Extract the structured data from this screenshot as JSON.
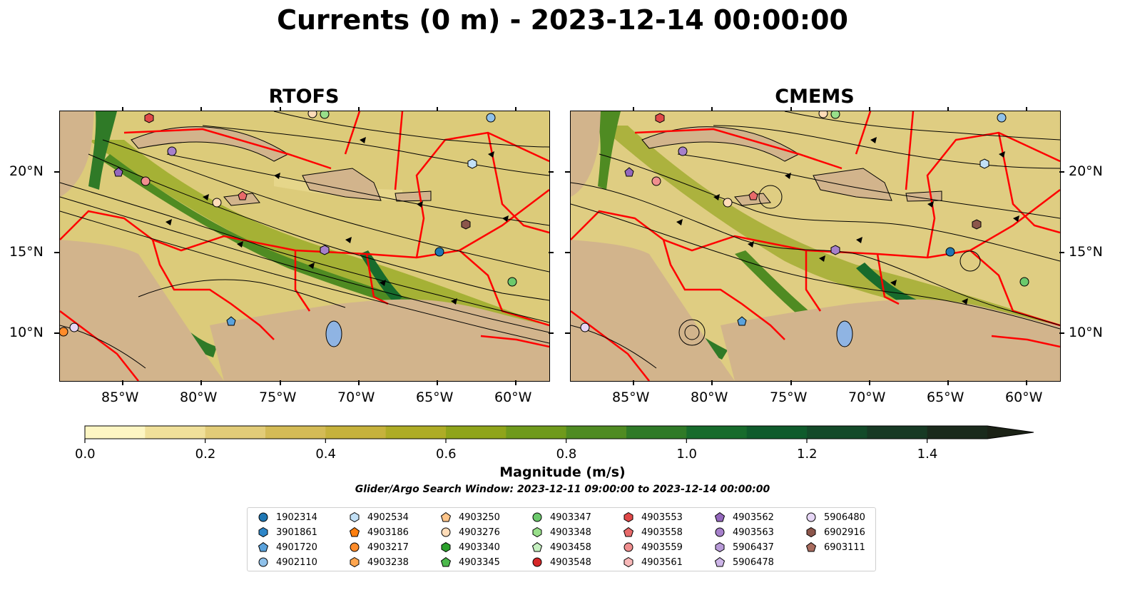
{
  "title": "Currents (0 m) - 2023-12-14 00:00:00",
  "panels": [
    {
      "title": "RTOFS"
    },
    {
      "title": "CMEMS"
    }
  ],
  "lon_ticks": [
    "85°W",
    "80°W",
    "75°W",
    "70°W",
    "65°W",
    "60°W"
  ],
  "lat_ticks": [
    "20°N",
    "15°N",
    "10°N"
  ],
  "colors": {
    "land": "#d2b48c",
    "lake": "#8fb4e3",
    "boundary": "#ff0000",
    "streamline": "#000000",
    "colormap": [
      "#fdf6c3",
      "#f0e09a",
      "#e2cc78",
      "#d4bb56",
      "#c6b23c",
      "#aeac26",
      "#8fa41a",
      "#6f9a1c",
      "#4f8b22",
      "#2f7a27",
      "#176b2c",
      "#0f5b2c",
      "#134a29",
      "#173a24",
      "#1a2a1c",
      "#1b2216"
    ]
  },
  "colorbar": {
    "label": "Magnitude (m/s)",
    "ticks": [
      "0.0",
      "0.2",
      "0.4",
      "0.6",
      "0.8",
      "1.0",
      "1.2",
      "1.4"
    ],
    "min": 0.0,
    "max": 1.5,
    "extend": "max"
  },
  "search_window": "Glider/Argo Search Window: 2023-12-11 09:00:00 to 2023-12-14 00:00:00",
  "legend": [
    {
      "id": "1902314",
      "marker": "circle",
      "color": "#1f77b4"
    },
    {
      "id": "3901861",
      "marker": "hexagon",
      "color": "#2e86c8"
    },
    {
      "id": "4901720",
      "marker": "pentagon",
      "color": "#5aa2dc"
    },
    {
      "id": "4902110",
      "marker": "circle",
      "color": "#8fc1ea"
    },
    {
      "id": "4902534",
      "marker": "hexagon",
      "color": "#c2e0f6"
    },
    {
      "id": "4903186",
      "marker": "pentagon",
      "color": "#ff7f0e"
    },
    {
      "id": "4903217",
      "marker": "circle",
      "color": "#ff8c2a"
    },
    {
      "id": "4903238",
      "marker": "hexagon",
      "color": "#ffa64f"
    },
    {
      "id": "4903250",
      "marker": "pentagon",
      "color": "#ffc58a"
    },
    {
      "id": "4903276",
      "marker": "circle",
      "color": "#ffdcb8"
    },
    {
      "id": "4903340",
      "marker": "hexagon",
      "color": "#2ca02c"
    },
    {
      "id": "4903345",
      "marker": "pentagon",
      "color": "#4cb84c"
    },
    {
      "id": "4903347",
      "marker": "circle",
      "color": "#6cc96c"
    },
    {
      "id": "4903348",
      "marker": "hexagon",
      "color": "#98df8a"
    },
    {
      "id": "4903458",
      "marker": "pentagon",
      "color": "#c5f0c0"
    },
    {
      "id": "4903548",
      "marker": "circle",
      "color": "#d62728"
    },
    {
      "id": "4903553",
      "marker": "hexagon",
      "color": "#e04848"
    },
    {
      "id": "4903558",
      "marker": "pentagon",
      "color": "#e86a6a"
    },
    {
      "id": "4903559",
      "marker": "circle",
      "color": "#f08f8f"
    },
    {
      "id": "4903561",
      "marker": "hexagon",
      "color": "#f8b8b8"
    },
    {
      "id": "4903562",
      "marker": "pentagon",
      "color": "#9467bd"
    },
    {
      "id": "4903563",
      "marker": "circle",
      "color": "#a680cb"
    },
    {
      "id": "5906437",
      "marker": "hexagon",
      "color": "#b89ad8"
    },
    {
      "id": "5906478",
      "marker": "pentagon",
      "color": "#cdb5e8"
    },
    {
      "id": "5906480",
      "marker": "circle",
      "color": "#e6d6f5"
    },
    {
      "id": "6902916",
      "marker": "hexagon",
      "color": "#8c564b"
    },
    {
      "id": "6903111",
      "marker": "pentagon",
      "color": "#a86b5e"
    }
  ]
}
